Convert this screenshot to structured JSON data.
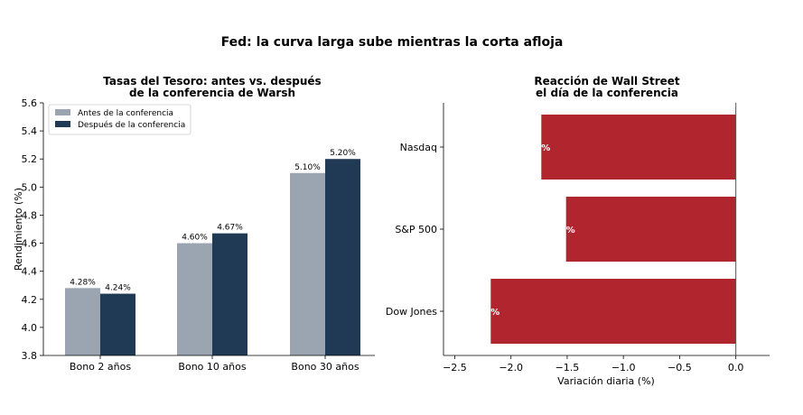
{
  "figure": {
    "title": "Fed: la curva larga sube mientras la corta afloja"
  },
  "colors": {
    "antes": "#9aa5b1",
    "despues": "#203954",
    "wall_street": "#b0252e"
  },
  "chart_data": [
    {
      "type": "bar",
      "title_lines": [
        "Tasas del Tesoro: antes vs. después",
        "de la conferencia de Warsh"
      ],
      "xlabel": "",
      "ylabel": "Rendimiento (%)",
      "categories": [
        "Bono 2 años",
        "Bono 10 años",
        "Bono 30 años"
      ],
      "series": [
        {
          "name": "Antes de la conferencia",
          "values": [
            4.28,
            4.6,
            5.1
          ],
          "labels": [
            "4.28%",
            "4.60%",
            "5.10%"
          ]
        },
        {
          "name": "Después de la conferencia",
          "values": [
            4.24,
            4.67,
            5.2
          ],
          "labels": [
            "4.24%",
            "4.67%",
            "5.20%"
          ]
        }
      ],
      "ylim": [
        3.8,
        5.6
      ],
      "yticks": [
        3.8,
        4.0,
        4.2,
        4.4,
        4.6,
        4.8,
        5.0,
        5.2,
        5.4,
        5.6
      ],
      "ytick_labels": [
        "3.8",
        "4.0",
        "4.2",
        "4.4",
        "4.6",
        "4.8",
        "5.0",
        "5.2",
        "5.4",
        "5.6"
      ],
      "legend": "top-left",
      "grid": false
    },
    {
      "type": "bar",
      "orientation": "horizontal",
      "title_lines": [
        "Reacción de Wall Street",
        "el día de la conferencia"
      ],
      "xlabel": "Variación diaria (%)",
      "ylabel": "",
      "categories": [
        "Nasdaq",
        "S&P 500",
        "Dow Jones"
      ],
      "values": [
        -1.73,
        -1.51,
        -2.18
      ],
      "labels": [
        "%",
        "%",
        "%"
      ],
      "xlim": [
        -2.6,
        0.3
      ],
      "xticks": [
        -2.5,
        -2.0,
        -1.5,
        -1.0,
        -0.5,
        0.0
      ],
      "xtick_labels": [
        "−2.5",
        "−2.0",
        "−1.5",
        "−1.0",
        "−0.5",
        "0.0"
      ],
      "grid": false
    }
  ]
}
